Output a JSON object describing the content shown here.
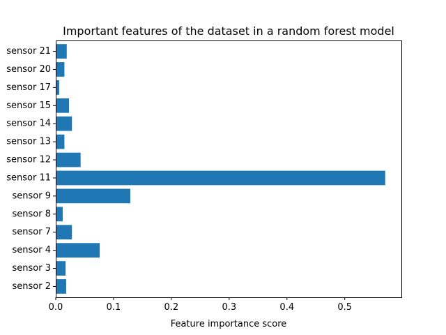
{
  "chart_data": {
    "type": "bar",
    "orientation": "horizontal",
    "title": "Important features of the dataset in a random forest model",
    "xlabel": "Feature importance score",
    "ylabel": "",
    "categories": [
      "sensor 2",
      "sensor 3",
      "sensor 4",
      "sensor 7",
      "sensor 8",
      "sensor 9",
      "sensor 11",
      "sensor 12",
      "sensor 13",
      "sensor 14",
      "sensor 15",
      "sensor 17",
      "sensor 20",
      "sensor 21"
    ],
    "values": [
      0.018,
      0.017,
      0.076,
      0.028,
      0.012,
      0.129,
      0.57,
      0.043,
      0.015,
      0.028,
      0.023,
      0.006,
      0.015,
      0.019
    ],
    "xlim": [
      0,
      0.598
    ],
    "xticks": [
      0.0,
      0.1,
      0.2,
      0.3,
      0.4,
      0.5
    ],
    "xtick_labels": [
      "0.0",
      "0.1",
      "0.2",
      "0.3",
      "0.4",
      "0.5"
    ],
    "bar_color": "#1f77b4",
    "grid": false,
    "legend": "none"
  }
}
